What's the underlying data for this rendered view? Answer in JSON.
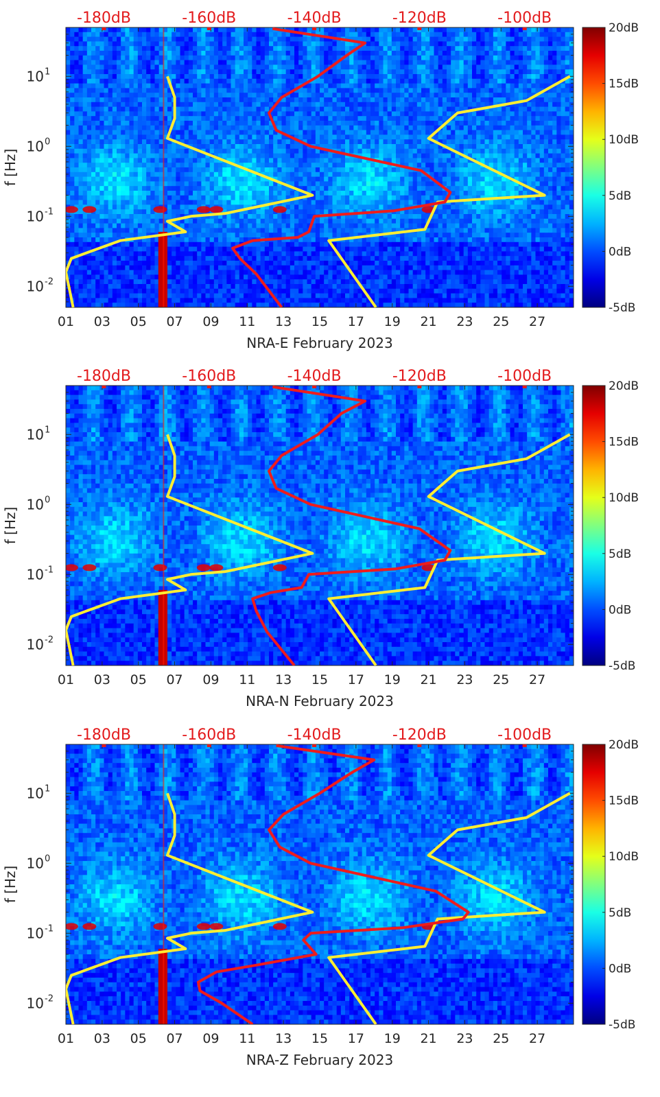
{
  "chart_data": [
    {
      "type": "heatmap",
      "title": "",
      "xlabel": "NRA-E February 2023",
      "ylabel": "f [Hz]",
      "x_ticks": [
        "01",
        "03",
        "05",
        "07",
        "09",
        "11",
        "13",
        "15",
        "17",
        "19",
        "21",
        "23",
        "25",
        "27"
      ],
      "y_ticks": [
        "10^{-2}",
        "10^{-1}",
        "10^{0}",
        "10^{1}"
      ],
      "ylim_hz": [
        0.005,
        50
      ],
      "xlim_days": [
        1,
        29
      ],
      "top_axis_labels": [
        "-180dB",
        "-160dB",
        "-140dB",
        "-120dB",
        "-100dB"
      ],
      "colorbar": {
        "labels": [
          "20dB",
          "15dB",
          "10dB",
          "5dB",
          "0dB",
          "-5dB"
        ],
        "range_db": [
          -5,
          20
        ]
      },
      "series": [
        {
          "name": "yellow PSD curve",
          "color": "#ffee33",
          "points": [
            [
              1.4,
              0.005
            ],
            [
              1.0,
              0.016
            ],
            [
              1.3,
              0.025
            ],
            [
              4.0,
              0.045
            ],
            [
              7.6,
              0.06
            ],
            [
              6.6,
              0.085
            ],
            [
              7.9,
              0.1
            ],
            [
              9.8,
              0.11
            ],
            [
              14.6,
              0.2
            ],
            [
              6.6,
              1.3
            ],
            [
              7.0,
              2.5
            ],
            [
              7.0,
              5.0
            ],
            [
              6.6,
              10
            ],
            [
              18.1,
              0.005
            ],
            [
              15.5,
              0.045
            ],
            [
              20.8,
              0.065
            ],
            [
              21.5,
              0.16
            ],
            [
              27.4,
              0.2
            ],
            [
              21.0,
              1.3
            ],
            [
              22.6,
              3.0
            ],
            [
              26.4,
              4.5
            ],
            [
              28.8,
              10
            ]
          ]
        },
        {
          "name": "red PSD curve",
          "color": "#ee1c1c",
          "points": [
            [
              12.9,
              0.005
            ],
            [
              11.5,
              0.015
            ],
            [
              10.6,
              0.025
            ],
            [
              10.2,
              0.035
            ],
            [
              11.3,
              0.045
            ],
            [
              13.8,
              0.05
            ],
            [
              14.4,
              0.06
            ],
            [
              14.7,
              0.1
            ],
            [
              19.1,
              0.12
            ],
            [
              21.9,
              0.16
            ],
            [
              22.2,
              0.22
            ],
            [
              20.6,
              0.45
            ],
            [
              14.5,
              1.0
            ],
            [
              12.6,
              1.7
            ],
            [
              12.2,
              3.0
            ],
            [
              12.9,
              5.0
            ],
            [
              14.9,
              10
            ],
            [
              16.5,
              20
            ],
            [
              17.5,
              30
            ],
            [
              12.4,
              48
            ]
          ]
        }
      ]
    },
    {
      "type": "heatmap",
      "title": "",
      "xlabel": "NRA-N February 2023",
      "ylabel": "f [Hz]",
      "x_ticks": [
        "01",
        "03",
        "05",
        "07",
        "09",
        "11",
        "13",
        "15",
        "17",
        "19",
        "21",
        "23",
        "25",
        "27"
      ],
      "y_ticks": [
        "10^{-2}",
        "10^{-1}",
        "10^{0}",
        "10^{1}"
      ],
      "ylim_hz": [
        0.005,
        50
      ],
      "xlim_days": [
        1,
        29
      ],
      "top_axis_labels": [
        "-180dB",
        "-160dB",
        "-140dB",
        "-120dB",
        "-100dB"
      ],
      "colorbar": {
        "labels": [
          "20dB",
          "15dB",
          "10dB",
          "5dB",
          "0dB",
          "-5dB"
        ],
        "range_db": [
          -5,
          20
        ]
      },
      "series": [
        {
          "name": "yellow PSD curve",
          "color": "#ffee33",
          "points": [
            [
              1.4,
              0.005
            ],
            [
              1.0,
              0.016
            ],
            [
              1.3,
              0.025
            ],
            [
              4.0,
              0.045
            ],
            [
              7.6,
              0.06
            ],
            [
              6.6,
              0.085
            ],
            [
              7.9,
              0.1
            ],
            [
              9.8,
              0.11
            ],
            [
              14.6,
              0.2
            ],
            [
              6.6,
              1.3
            ],
            [
              7.0,
              2.5
            ],
            [
              7.0,
              5.0
            ],
            [
              6.6,
              10
            ],
            [
              18.1,
              0.005
            ],
            [
              15.5,
              0.045
            ],
            [
              20.8,
              0.065
            ],
            [
              21.5,
              0.16
            ],
            [
              27.4,
              0.2
            ],
            [
              21.0,
              1.3
            ],
            [
              22.6,
              3.0
            ],
            [
              26.4,
              4.5
            ],
            [
              28.8,
              10
            ]
          ]
        },
        {
          "name": "red PSD curve",
          "color": "#ee1c1c",
          "points": [
            [
              13.6,
              0.005
            ],
            [
              12.1,
              0.015
            ],
            [
              11.5,
              0.03
            ],
            [
              11.3,
              0.045
            ],
            [
              12.3,
              0.055
            ],
            [
              14.0,
              0.065
            ],
            [
              14.4,
              0.1
            ],
            [
              19.2,
              0.12
            ],
            [
              21.9,
              0.16
            ],
            [
              22.2,
              0.22
            ],
            [
              20.5,
              0.45
            ],
            [
              14.5,
              1.0
            ],
            [
              12.6,
              1.7
            ],
            [
              12.2,
              3.0
            ],
            [
              12.9,
              5.0
            ],
            [
              14.9,
              10
            ],
            [
              16.2,
              20
            ],
            [
              17.5,
              30
            ],
            [
              12.4,
              48
            ]
          ]
        }
      ]
    },
    {
      "type": "heatmap",
      "title": "",
      "xlabel": "NRA-Z February 2023",
      "ylabel": "f [Hz]",
      "x_ticks": [
        "01",
        "03",
        "05",
        "07",
        "09",
        "11",
        "13",
        "15",
        "17",
        "19",
        "21",
        "23",
        "25",
        "27"
      ],
      "y_ticks": [
        "10^{-2}",
        "10^{-1}",
        "10^{0}",
        "10^{1}"
      ],
      "ylim_hz": [
        0.005,
        50
      ],
      "xlim_days": [
        1,
        29
      ],
      "top_axis_labels": [
        "-180dB",
        "-160dB",
        "-140dB",
        "-120dB",
        "-100dB"
      ],
      "colorbar": {
        "labels": [
          "20dB",
          "15dB",
          "10dB",
          "5dB",
          "0dB",
          "-5dB"
        ],
        "range_db": [
          -5,
          20
        ]
      },
      "series": [
        {
          "name": "yellow PSD curve",
          "color": "#ffee33",
          "points": [
            [
              1.4,
              0.005
            ],
            [
              1.0,
              0.016
            ],
            [
              1.3,
              0.025
            ],
            [
              4.0,
              0.045
            ],
            [
              7.6,
              0.06
            ],
            [
              6.6,
              0.085
            ],
            [
              7.9,
              0.1
            ],
            [
              9.8,
              0.11
            ],
            [
              14.6,
              0.2
            ],
            [
              6.6,
              1.3
            ],
            [
              7.0,
              2.5
            ],
            [
              7.0,
              5.0
            ],
            [
              6.6,
              10
            ],
            [
              18.1,
              0.005
            ],
            [
              15.5,
              0.045
            ],
            [
              20.8,
              0.065
            ],
            [
              21.5,
              0.16
            ],
            [
              27.4,
              0.2
            ],
            [
              21.0,
              1.3
            ],
            [
              22.6,
              3.0
            ],
            [
              26.4,
              4.5
            ],
            [
              28.8,
              10
            ]
          ]
        },
        {
          "name": "red PSD curve",
          "color": "#ee1c1c",
          "points": [
            [
              11.3,
              0.005
            ],
            [
              9.6,
              0.01
            ],
            [
              8.4,
              0.015
            ],
            [
              8.3,
              0.02
            ],
            [
              9.3,
              0.028
            ],
            [
              11.5,
              0.035
            ],
            [
              14.8,
              0.05
            ],
            [
              14.1,
              0.08
            ],
            [
              14.5,
              0.1
            ],
            [
              19.6,
              0.12
            ],
            [
              22.9,
              0.16
            ],
            [
              23.2,
              0.2
            ],
            [
              21.4,
              0.4
            ],
            [
              14.5,
              1.0
            ],
            [
              12.8,
              1.7
            ],
            [
              12.2,
              3.0
            ],
            [
              13.0,
              5.0
            ],
            [
              15.0,
              10
            ],
            [
              16.8,
              20
            ],
            [
              18.0,
              30
            ],
            [
              12.6,
              48
            ]
          ]
        }
      ]
    }
  ]
}
